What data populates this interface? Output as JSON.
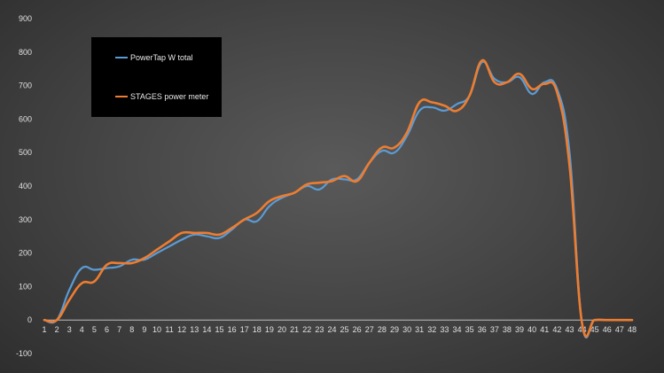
{
  "chart_data": {
    "type": "line",
    "x": [
      1,
      2,
      3,
      4,
      5,
      6,
      7,
      8,
      9,
      10,
      11,
      12,
      13,
      14,
      15,
      16,
      17,
      18,
      19,
      20,
      21,
      22,
      23,
      24,
      25,
      26,
      27,
      28,
      29,
      30,
      31,
      32,
      33,
      34,
      35,
      36,
      37,
      38,
      39,
      40,
      41,
      42,
      43,
      44,
      45,
      46,
      47,
      48
    ],
    "series": [
      {
        "name": "PowerTap W total",
        "color": "#5b9bd5",
        "values": [
          0,
          0,
          90,
          155,
          150,
          155,
          160,
          180,
          180,
          200,
          220,
          240,
          255,
          250,
          245,
          270,
          300,
          295,
          340,
          365,
          380,
          400,
          390,
          420,
          420,
          420,
          470,
          505,
          500,
          550,
          625,
          635,
          625,
          645,
          670,
          770,
          720,
          710,
          725,
          675,
          710,
          690,
          500,
          -10,
          0,
          0,
          0,
          0
        ]
      },
      {
        "name": "STAGES power meter",
        "color": "#ed7d31",
        "values": [
          0,
          0,
          60,
          110,
          115,
          165,
          170,
          170,
          185,
          210,
          235,
          260,
          260,
          260,
          255,
          275,
          300,
          320,
          355,
          370,
          380,
          405,
          410,
          415,
          430,
          415,
          470,
          515,
          515,
          560,
          650,
          650,
          640,
          625,
          670,
          775,
          710,
          710,
          735,
          690,
          705,
          680,
          460,
          -10,
          0,
          0,
          0,
          0
        ]
      }
    ],
    "ylim": [
      -100,
      900
    ],
    "yticks": [
      -100,
      0,
      100,
      200,
      300,
      400,
      500,
      600,
      700,
      800,
      900
    ],
    "grid": false,
    "legend": "top-left"
  }
}
